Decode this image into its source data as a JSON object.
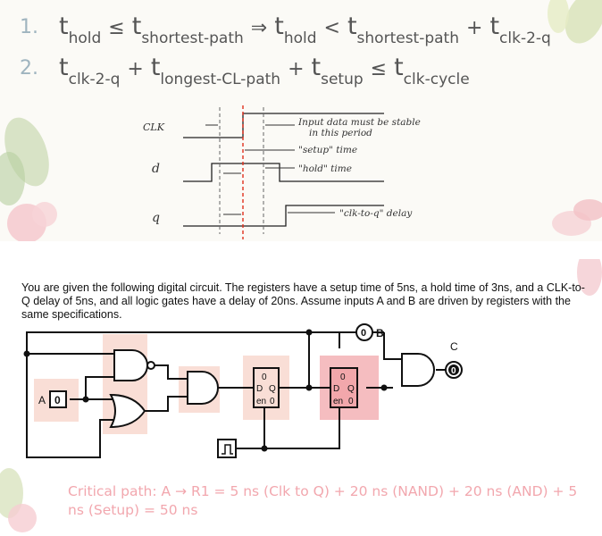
{
  "equations": [
    {
      "number": "1.",
      "parts": [
        {
          "kind": "t",
          "sub": "hold"
        },
        {
          "kind": "op",
          "text": "≤"
        },
        {
          "kind": "t",
          "sub": "shortest-path"
        },
        {
          "kind": "op",
          "text": "⇒"
        },
        {
          "kind": "t",
          "sub": "hold"
        },
        {
          "kind": "op",
          "text": "<"
        },
        {
          "kind": "t",
          "sub": "shortest-path"
        },
        {
          "kind": "op",
          "text": "+"
        },
        {
          "kind": "t",
          "sub": "clk-2-q"
        }
      ]
    },
    {
      "number": "2.",
      "parts": [
        {
          "kind": "t",
          "sub": "clk-2-q"
        },
        {
          "kind": "op",
          "text": "+"
        },
        {
          "kind": "t",
          "sub": "longest-CL-path"
        },
        {
          "kind": "op",
          "text": "+"
        },
        {
          "kind": "t",
          "sub": "setup"
        },
        {
          "kind": "op",
          "text": "≤"
        },
        {
          "kind": "t",
          "sub": "clk-cycle"
        }
      ]
    }
  ],
  "timing_diagram": {
    "signal_labels": {
      "clk": "CLK",
      "d": "d",
      "q": "q"
    },
    "annotations": {
      "stable_line1": "Input data must be stable",
      "stable_line2": "in this period",
      "setup": "\"setup\" time",
      "hold": "\"hold\" time",
      "clk_to_q": "\"clk-to-q\" delay"
    }
  },
  "problem_text": "You are given the following digital circuit. The registers have a setup time of 5ns, a hold time of 3ns, and a CLK-to-Q delay of 5ns, and all logic gates have a delay of 20ns. Assume inputs A and B are driven by registers with the same specifications.",
  "circuit": {
    "input_a_label": "A",
    "input_a_value": "0",
    "output_b_label": "B",
    "output_b_value": "0",
    "output_c_label": "C",
    "output_c_value": "0",
    "register_top_value": "0",
    "register_d": "D",
    "register_q": "Q",
    "register_en": "en",
    "register_out_value": "0"
  },
  "critical_path": "Critical path: A → R1 = 5 ns (Clk to Q) + 20 ns (NAND) + 20 ns (AND) + 5 ns (Setup) = 50 ns",
  "colors": {
    "highlight": "#f9ded6",
    "highlight_strong": "#f2a7ab",
    "critical_text": "#f2a7ae",
    "clock_marker": "#e0301e"
  }
}
